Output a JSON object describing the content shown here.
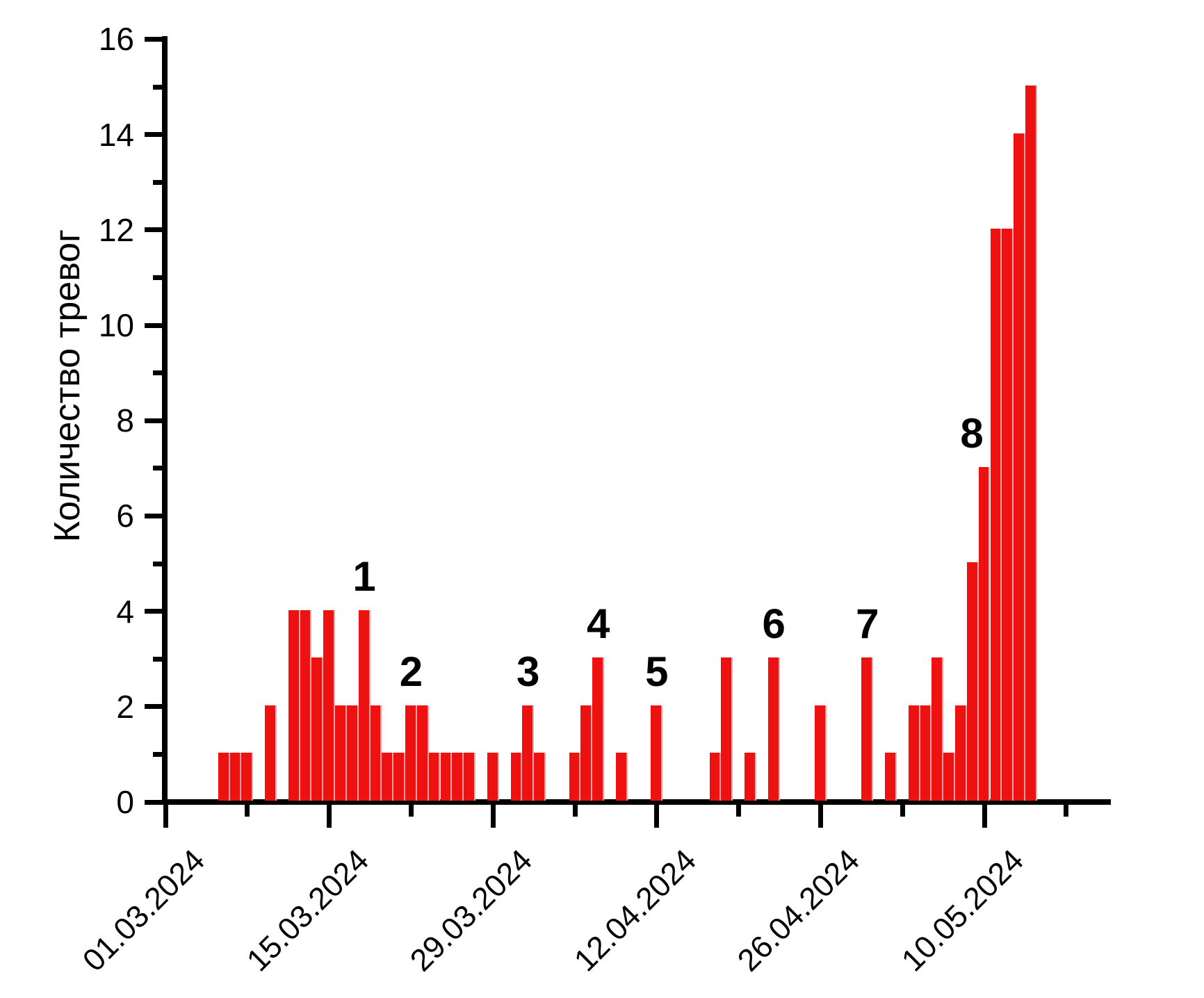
{
  "chart_data": {
    "type": "bar",
    "title": "",
    "ylabel": "Количество тревог",
    "xlabel": "",
    "ylim": [
      0,
      16
    ],
    "grid": false,
    "legend": "none",
    "bar_color": "#ee1111",
    "bar_divider_color": "#ffa2a2",
    "axis_color": "#000000",
    "y_major_ticks": [
      0,
      2,
      4,
      6,
      8,
      10,
      12,
      14,
      16
    ],
    "y_minor_ticks": [
      1,
      3,
      5,
      7,
      9,
      11,
      13,
      15
    ],
    "x_major_ticks": [
      {
        "day": 0,
        "label": "01.03.2024"
      },
      {
        "day": 14,
        "label": "15.03.2024"
      },
      {
        "day": 28,
        "label": "29.03.2024"
      },
      {
        "day": 42,
        "label": "12.04.2024"
      },
      {
        "day": 56,
        "label": "26.04.2024"
      },
      {
        "day": 70,
        "label": "10.05.2024"
      }
    ],
    "x_minor_tick_days": [
      7,
      21,
      35,
      49,
      63,
      77
    ],
    "x_start_date": "01.03.2024",
    "bars": [
      {
        "date": "06.03.2024",
        "day": 5,
        "value": 1
      },
      {
        "date": "07.03.2024",
        "day": 6,
        "value": 1
      },
      {
        "date": "08.03.2024",
        "day": 7,
        "value": 1
      },
      {
        "date": "10.03.2024",
        "day": 9,
        "value": 2
      },
      {
        "date": "12.03.2024",
        "day": 11,
        "value": 4
      },
      {
        "date": "13.03.2024",
        "day": 12,
        "value": 4
      },
      {
        "date": "14.03.2024",
        "day": 13,
        "value": 3
      },
      {
        "date": "15.03.2024",
        "day": 14,
        "value": 4
      },
      {
        "date": "16.03.2024",
        "day": 15,
        "value": 2
      },
      {
        "date": "17.03.2024",
        "day": 16,
        "value": 2
      },
      {
        "date": "18.03.2024",
        "day": 17,
        "value": 4,
        "annotation": "1"
      },
      {
        "date": "19.03.2024",
        "day": 18,
        "value": 2
      },
      {
        "date": "20.03.2024",
        "day": 19,
        "value": 1
      },
      {
        "date": "21.03.2024",
        "day": 20,
        "value": 1
      },
      {
        "date": "22.03.2024",
        "day": 21,
        "value": 2,
        "annotation": "2"
      },
      {
        "date": "23.03.2024",
        "day": 22,
        "value": 2
      },
      {
        "date": "24.03.2024",
        "day": 23,
        "value": 1
      },
      {
        "date": "25.03.2024",
        "day": 24,
        "value": 1
      },
      {
        "date": "26.03.2024",
        "day": 25,
        "value": 1
      },
      {
        "date": "27.03.2024",
        "day": 26,
        "value": 1
      },
      {
        "date": "29.03.2024",
        "day": 28,
        "value": 1
      },
      {
        "date": "31.03.2024",
        "day": 30,
        "value": 1
      },
      {
        "date": "01.04.2024",
        "day": 31,
        "value": 2,
        "annotation": "3"
      },
      {
        "date": "02.04.2024",
        "day": 32,
        "value": 1
      },
      {
        "date": "05.04.2024",
        "day": 35,
        "value": 1
      },
      {
        "date": "06.04.2024",
        "day": 36,
        "value": 2
      },
      {
        "date": "07.04.2024",
        "day": 37,
        "value": 3,
        "annotation": "4"
      },
      {
        "date": "09.04.2024",
        "day": 39,
        "value": 1
      },
      {
        "date": "12.04.2024",
        "day": 42,
        "value": 2,
        "annotation": "5"
      },
      {
        "date": "17.04.2024",
        "day": 47,
        "value": 1
      },
      {
        "date": "18.04.2024",
        "day": 48,
        "value": 3
      },
      {
        "date": "20.04.2024",
        "day": 50,
        "value": 1
      },
      {
        "date": "22.04.2024",
        "day": 52,
        "value": 3,
        "annotation": "6"
      },
      {
        "date": "26.04.2024",
        "day": 56,
        "value": 2
      },
      {
        "date": "30.04.2024",
        "day": 60,
        "value": 3,
        "annotation": "7"
      },
      {
        "date": "02.05.2024",
        "day": 62,
        "value": 1
      },
      {
        "date": "04.05.2024",
        "day": 64,
        "value": 2
      },
      {
        "date": "05.05.2024",
        "day": 65,
        "value": 2
      },
      {
        "date": "06.05.2024",
        "day": 66,
        "value": 3
      },
      {
        "date": "07.05.2024",
        "day": 67,
        "value": 1
      },
      {
        "date": "08.05.2024",
        "day": 68,
        "value": 2
      },
      {
        "date": "09.05.2024",
        "day": 69,
        "value": 5
      },
      {
        "date": "10.05.2024",
        "day": 70,
        "value": 7,
        "annotation": "8",
        "annotation_dx": -18
      },
      {
        "date": "11.05.2024",
        "day": 71,
        "value": 12
      },
      {
        "date": "12.05.2024",
        "day": 72,
        "value": 12
      },
      {
        "date": "13.05.2024",
        "day": 73,
        "value": 14
      },
      {
        "date": "14.05.2024",
        "day": 74,
        "value": 15
      }
    ]
  }
}
